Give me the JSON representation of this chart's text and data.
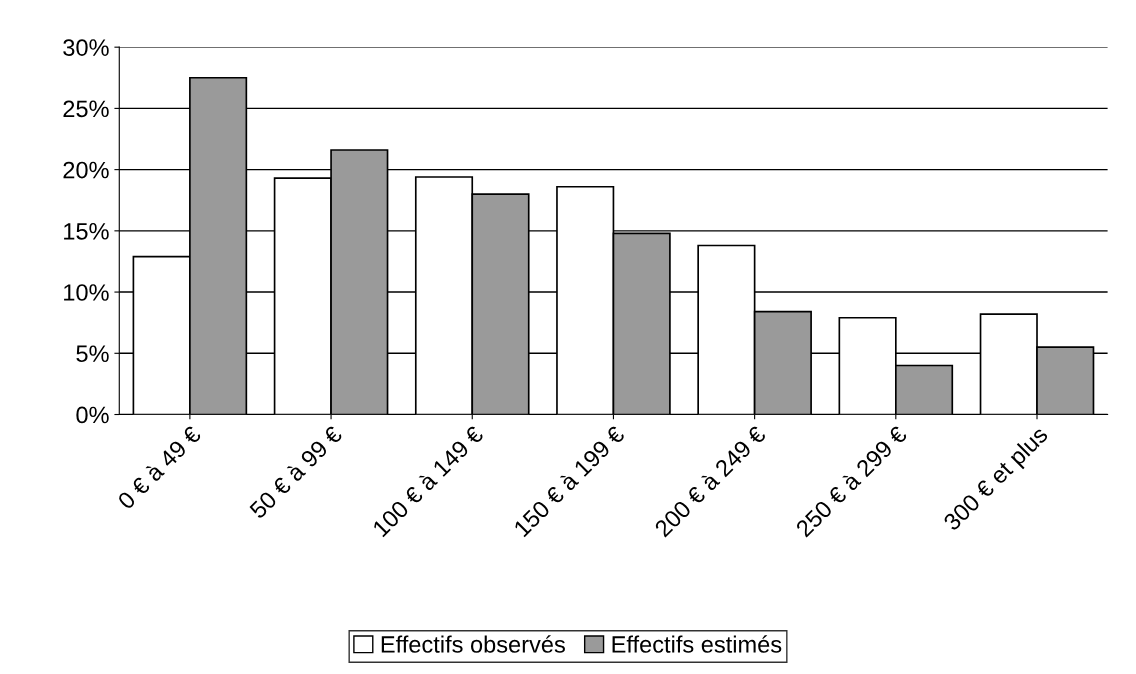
{
  "chart_data": {
    "type": "bar",
    "categories": [
      "0 € à 49 €",
      "50 € à 99 €",
      "100 € à 149 €",
      "150 € à 199 €",
      "200 € à 249 €",
      "250 € à 299 €",
      "300 € et plus"
    ],
    "series": [
      {
        "name": "Effectifs observés",
        "color": "#ffffff",
        "values": [
          12.9,
          19.3,
          19.4,
          18.6,
          13.8,
          7.9,
          8.2
        ]
      },
      {
        "name": "Effectifs estimés",
        "color": "#9a9a9a",
        "values": [
          27.5,
          21.6,
          18.0,
          14.8,
          8.4,
          4.0,
          5.5
        ]
      }
    ],
    "ylim": [
      0,
      30
    ],
    "yticks": [
      {
        "value": 0,
        "label": "0%"
      },
      {
        "value": 5,
        "label": "5%"
      },
      {
        "value": 10,
        "label": "10%"
      },
      {
        "value": 15,
        "label": "15%"
      },
      {
        "value": 20,
        "label": "20%"
      },
      {
        "value": 25,
        "label": "25%"
      },
      {
        "value": 30,
        "label": "30%"
      }
    ],
    "grid": "y",
    "legend": "bottom"
  }
}
